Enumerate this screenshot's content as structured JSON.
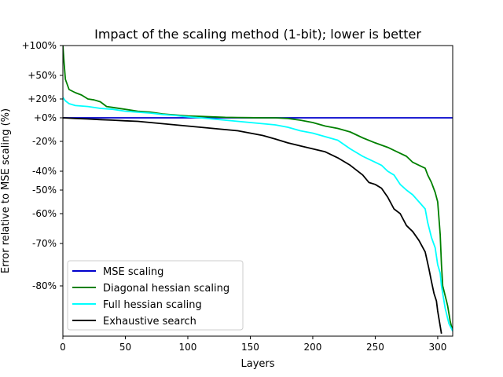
{
  "chart_data": {
    "type": "line",
    "title": "Impact of the scaling method (1-bit); lower is better",
    "xlabel": "Layers",
    "ylabel": "Error relative to MSE scaling (%)",
    "xlim": [
      0,
      312
    ],
    "y_scale": "custom nonlinear (symlog-like)",
    "x_ticks": [
      0,
      50,
      100,
      150,
      200,
      250,
      300
    ],
    "y_ticks": [
      {
        "value": 100,
        "label": "+100%"
      },
      {
        "value": 50,
        "label": "+50%"
      },
      {
        "value": 20,
        "label": "+20%"
      },
      {
        "value": 0,
        "label": "+0%"
      },
      {
        "value": -20,
        "label": "-20%"
      },
      {
        "value": -40,
        "label": "-40%"
      },
      {
        "value": -50,
        "label": "-50%"
      },
      {
        "value": -60,
        "label": "-60%"
      },
      {
        "value": -70,
        "label": "-70%"
      },
      {
        "value": -80,
        "label": "-80%"
      }
    ],
    "grid": false,
    "legend_position": "lower-left",
    "series": [
      {
        "name": "MSE scaling",
        "color": "#0000cc",
        "points": [
          [
            0,
            0
          ],
          [
            312,
            0
          ]
        ]
      },
      {
        "name": "Diagonal hessian scaling",
        "color": "#008000",
        "points": [
          [
            0,
            100
          ],
          [
            1,
            70
          ],
          [
            2,
            45
          ],
          [
            5,
            32
          ],
          [
            10,
            28
          ],
          [
            15,
            25
          ],
          [
            20,
            20
          ],
          [
            25,
            19
          ],
          [
            30,
            17
          ],
          [
            35,
            12
          ],
          [
            40,
            11
          ],
          [
            50,
            9
          ],
          [
            60,
            7
          ],
          [
            70,
            6
          ],
          [
            80,
            4
          ],
          [
            90,
            3
          ],
          [
            100,
            2
          ],
          [
            110,
            1.5
          ],
          [
            120,
            1
          ],
          [
            130,
            0.5
          ],
          [
            140,
            0.3
          ],
          [
            150,
            0.2
          ],
          [
            160,
            0
          ],
          [
            170,
            0
          ],
          [
            180,
            -0.5
          ],
          [
            190,
            -2
          ],
          [
            200,
            -4
          ],
          [
            210,
            -7
          ],
          [
            220,
            -9
          ],
          [
            230,
            -12
          ],
          [
            240,
            -17
          ],
          [
            250,
            -21
          ],
          [
            260,
            -24
          ],
          [
            270,
            -28
          ],
          [
            275,
            -30
          ],
          [
            280,
            -34
          ],
          [
            285,
            -36
          ],
          [
            290,
            -38
          ],
          [
            292,
            -42
          ],
          [
            295,
            -46
          ],
          [
            298,
            -51
          ],
          [
            300,
            -55
          ],
          [
            302,
            -67
          ],
          [
            303,
            -75
          ],
          [
            304,
            -80
          ],
          [
            305,
            -82
          ],
          [
            306,
            -84
          ],
          [
            307,
            -86
          ],
          [
            308,
            -88
          ],
          [
            309,
            -91
          ],
          [
            310,
            -94
          ],
          [
            311,
            -96
          ],
          [
            312,
            -98
          ]
        ]
      },
      {
        "name": "Full hessian scaling",
        "color": "#00ffff",
        "points": [
          [
            0,
            22
          ],
          [
            2,
            18
          ],
          [
            5,
            15
          ],
          [
            10,
            13
          ],
          [
            20,
            12
          ],
          [
            30,
            10
          ],
          [
            40,
            9
          ],
          [
            50,
            7
          ],
          [
            60,
            6
          ],
          [
            70,
            5
          ],
          [
            80,
            3.5
          ],
          [
            90,
            2.5
          ],
          [
            100,
            1
          ],
          [
            110,
            0
          ],
          [
            120,
            -1
          ],
          [
            130,
            -2
          ],
          [
            140,
            -3
          ],
          [
            150,
            -4
          ],
          [
            160,
            -5
          ],
          [
            170,
            -6
          ],
          [
            180,
            -8
          ],
          [
            190,
            -11
          ],
          [
            200,
            -13
          ],
          [
            210,
            -16
          ],
          [
            220,
            -19
          ],
          [
            230,
            -25
          ],
          [
            240,
            -30
          ],
          [
            250,
            -34
          ],
          [
            255,
            -36
          ],
          [
            260,
            -40
          ],
          [
            265,
            -42
          ],
          [
            270,
            -47
          ],
          [
            275,
            -50
          ],
          [
            280,
            -52
          ],
          [
            285,
            -55
          ],
          [
            290,
            -58
          ],
          [
            292,
            -63
          ],
          [
            295,
            -68
          ],
          [
            298,
            -71
          ],
          [
            300,
            -75
          ],
          [
            302,
            -77
          ],
          [
            303,
            -80
          ],
          [
            304,
            -83
          ],
          [
            305,
            -86
          ],
          [
            306,
            -89
          ],
          [
            307,
            -91
          ],
          [
            308,
            -93
          ],
          [
            309,
            -95
          ],
          [
            310,
            -96
          ],
          [
            311,
            -97
          ],
          [
            312,
            -98
          ]
        ]
      },
      {
        "name": "Exhaustive search",
        "color": "#000000",
        "points": [
          [
            0,
            0
          ],
          [
            10,
            -0.5
          ],
          [
            20,
            -1
          ],
          [
            30,
            -1.5
          ],
          [
            40,
            -2
          ],
          [
            50,
            -2.5
          ],
          [
            60,
            -3
          ],
          [
            70,
            -4
          ],
          [
            80,
            -5
          ],
          [
            90,
            -6
          ],
          [
            100,
            -7
          ],
          [
            110,
            -8
          ],
          [
            120,
            -9
          ],
          [
            130,
            -10
          ],
          [
            140,
            -11
          ],
          [
            150,
            -13
          ],
          [
            160,
            -15
          ],
          [
            170,
            -18
          ],
          [
            180,
            -21
          ],
          [
            190,
            -23
          ],
          [
            200,
            -25
          ],
          [
            210,
            -27
          ],
          [
            220,
            -31
          ],
          [
            230,
            -36
          ],
          [
            240,
            -42
          ],
          [
            245,
            -46
          ],
          [
            250,
            -47
          ],
          [
            255,
            -49
          ],
          [
            260,
            -53
          ],
          [
            265,
            -58
          ],
          [
            270,
            -60
          ],
          [
            275,
            -64
          ],
          [
            280,
            -66
          ],
          [
            285,
            -69
          ],
          [
            290,
            -72
          ],
          [
            293,
            -76
          ],
          [
            295,
            -79
          ],
          [
            297,
            -83
          ],
          [
            299,
            -86
          ],
          [
            300,
            -90
          ],
          [
            301,
            -93
          ],
          [
            302,
            -96
          ],
          [
            303,
            -99
          ]
        ]
      }
    ]
  }
}
